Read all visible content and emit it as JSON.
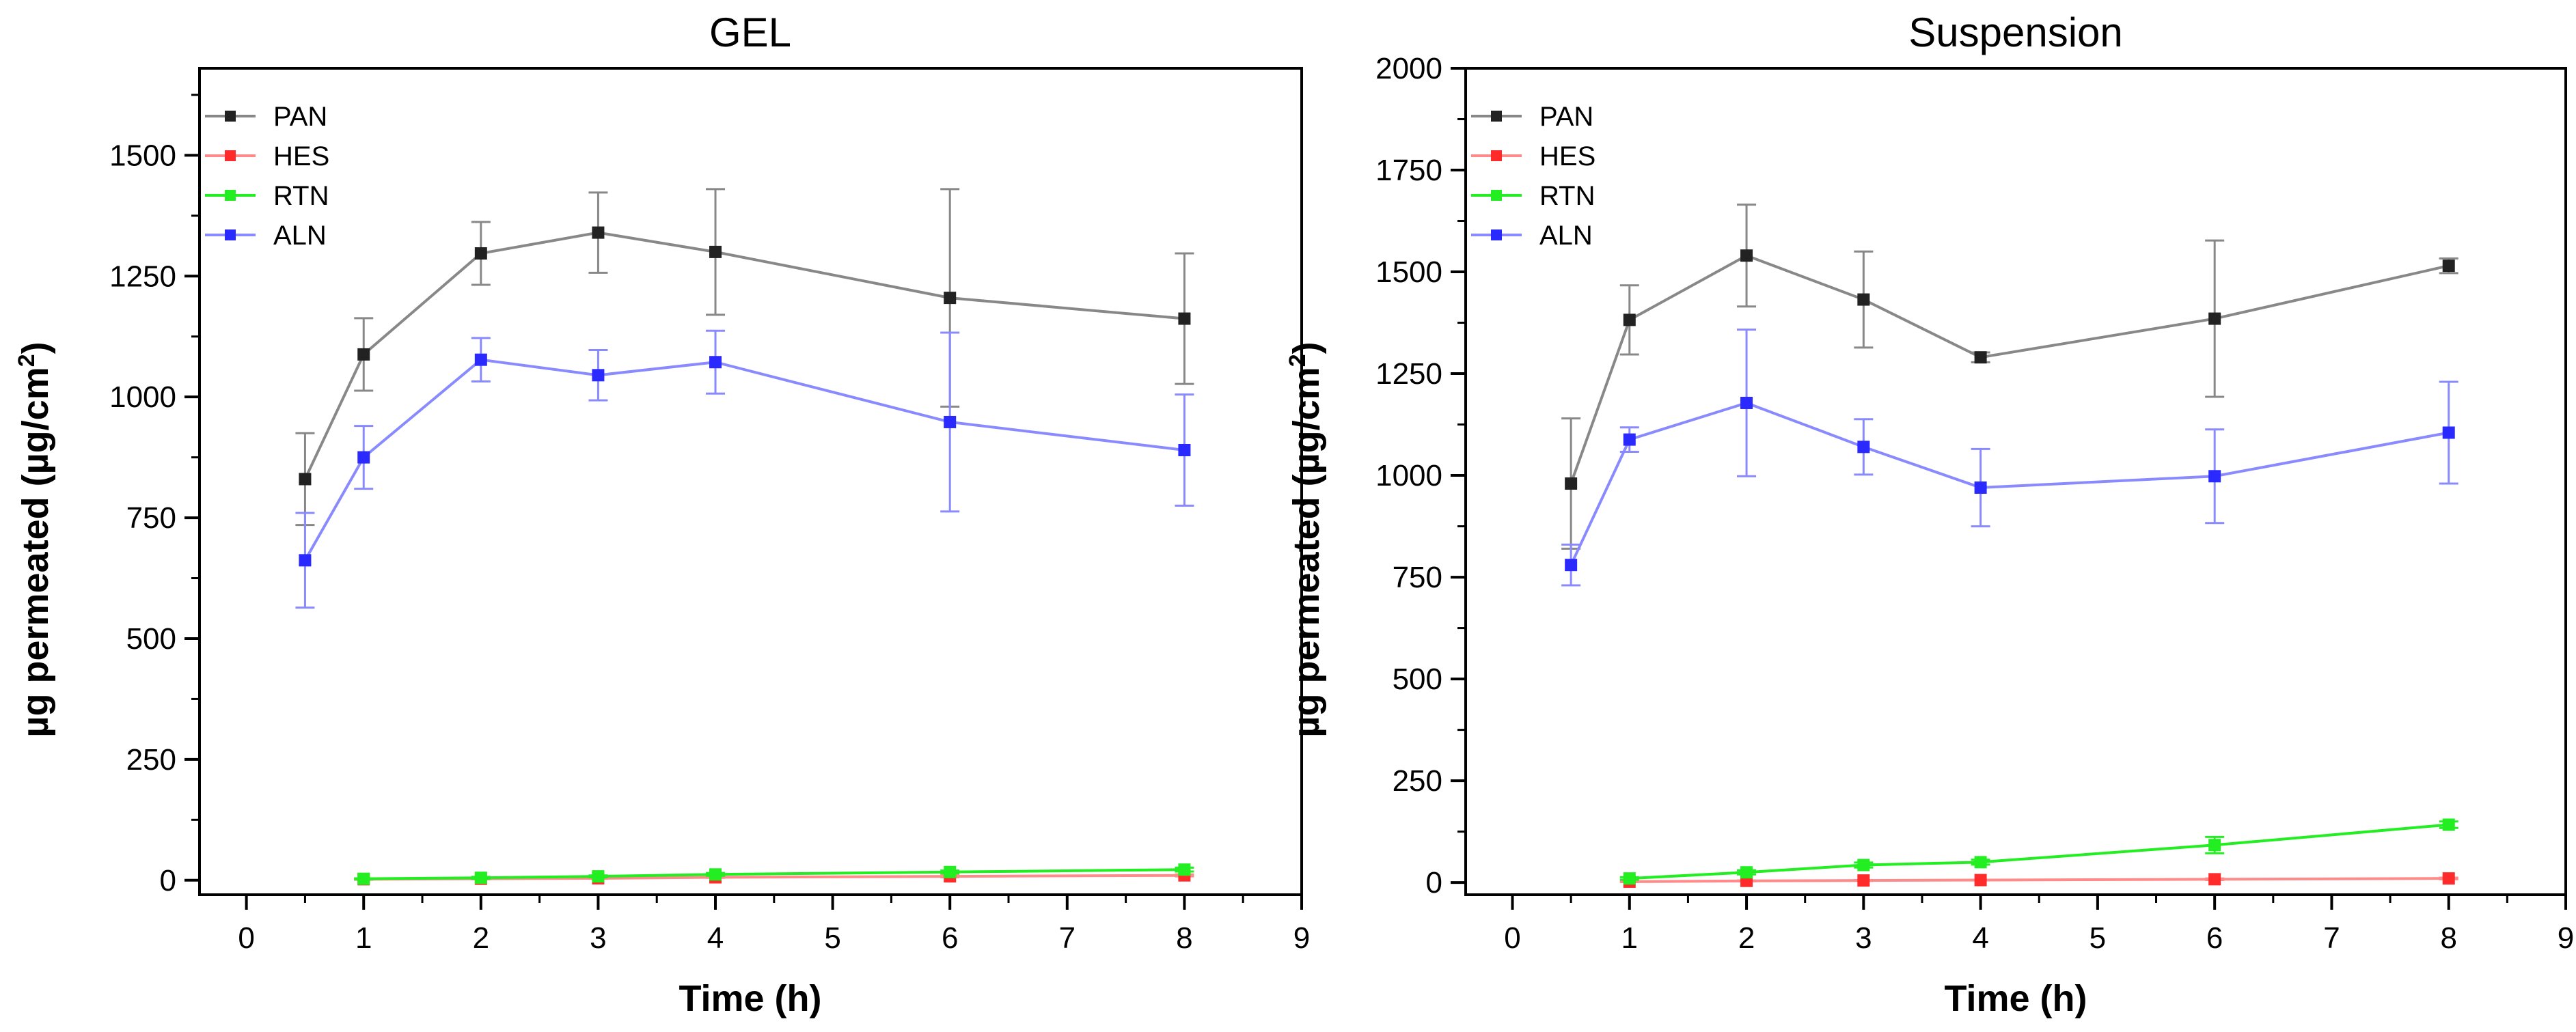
{
  "chart_data": [
    {
      "type": "line",
      "title": "GEL",
      "xlabel": "Time (h)",
      "ylabel": "µg permeated (µg/cm²)",
      "ylabel_main": "µg permeated (µg/cm",
      "ylabel_sup": "2",
      "ylabel_tail": ")",
      "xlim": [
        -0.4,
        9
      ],
      "ylim": [
        -30,
        1680
      ],
      "xticks": [
        0,
        1,
        2,
        3,
        4,
        5,
        6,
        7,
        8,
        9
      ],
      "yticks": [
        0,
        250,
        500,
        750,
        1000,
        1250,
        1500
      ],
      "xtick_labels": [
        "0",
        "1",
        "2",
        "3",
        "4",
        "5",
        "6",
        "7",
        "8",
        "9"
      ],
      "ytick_labels": [
        "0",
        "250",
        "500",
        "750",
        "1000",
        "1250",
        "1500"
      ],
      "grid": false,
      "legend_position": "top-left",
      "series": [
        {
          "name": "PAN",
          "color": "#222222",
          "line_color": "#888888",
          "x": [
            0.5,
            1,
            2,
            3,
            4,
            6,
            8
          ],
          "y": [
            830,
            1088,
            1297,
            1340,
            1300,
            1205,
            1162
          ],
          "err": [
            95,
            75,
            65,
            83,
            130,
            225,
            135
          ]
        },
        {
          "name": "HES",
          "color": "#ff2a2a",
          "line_color": "#ff8a8a",
          "x": [
            1,
            2,
            3,
            4,
            6,
            8
          ],
          "y": [
            2,
            3,
            4,
            6,
            8,
            10
          ],
          "err": [
            1,
            1,
            1,
            1,
            2,
            2
          ]
        },
        {
          "name": "RTN",
          "color": "#22ee22",
          "line_color": "#22ee22",
          "x": [
            1,
            2,
            3,
            4,
            6,
            8
          ],
          "y": [
            3,
            5,
            8,
            12,
            17,
            22
          ],
          "err": [
            1,
            2,
            2,
            3,
            3,
            4
          ]
        },
        {
          "name": "ALN",
          "color": "#2a2aff",
          "line_color": "#8a8aff",
          "x": [
            0.5,
            1,
            2,
            3,
            4,
            6,
            8
          ],
          "y": [
            662,
            875,
            1077,
            1045,
            1072,
            948,
            890
          ],
          "err": [
            98,
            65,
            45,
            52,
            65,
            185,
            115
          ]
        }
      ]
    },
    {
      "type": "line",
      "title": "Suspension",
      "xlabel": "Time (h)",
      "ylabel": "µg permeated (µg/cm²)",
      "ylabel_main": "µg permeated (µg/cm",
      "ylabel_sup": "2",
      "ylabel_tail": ")",
      "xlim": [
        -0.4,
        9
      ],
      "ylim": [
        -30,
        2000
      ],
      "xticks": [
        0,
        1,
        2,
        3,
        4,
        5,
        6,
        7,
        8,
        9
      ],
      "yticks": [
        0,
        250,
        500,
        750,
        1000,
        1250,
        1500,
        1750,
        2000
      ],
      "xtick_labels": [
        "0",
        "1",
        "2",
        "3",
        "4",
        "5",
        "6",
        "7",
        "8",
        "9"
      ],
      "ytick_labels": [
        "0",
        "250",
        "500",
        "750",
        "1000",
        "1250",
        "1500",
        "1750",
        "2000"
      ],
      "grid": false,
      "legend_position": "top-left",
      "series": [
        {
          "name": "PAN",
          "color": "#222222",
          "line_color": "#888888",
          "x": [
            0.5,
            1,
            2,
            3,
            4,
            6,
            8
          ],
          "y": [
            980,
            1382,
            1540,
            1432,
            1290,
            1385,
            1515
          ],
          "err": [
            160,
            85,
            125,
            118,
            12,
            192,
            18
          ]
        },
        {
          "name": "HES",
          "color": "#ff2a2a",
          "line_color": "#ff8a8a",
          "x": [
            1,
            2,
            3,
            4,
            6,
            8
          ],
          "y": [
            2,
            4,
            5,
            6,
            8,
            10
          ],
          "err": [
            1,
            1,
            1,
            1,
            2,
            2
          ]
        },
        {
          "name": "RTN",
          "color": "#22ee22",
          "line_color": "#22ee22",
          "x": [
            1,
            2,
            3,
            4,
            6,
            8
          ],
          "y": [
            10,
            25,
            43,
            50,
            92,
            142
          ],
          "err": [
            3,
            5,
            6,
            6,
            20,
            8
          ]
        },
        {
          "name": "ALN",
          "color": "#2a2aff",
          "line_color": "#8a8aff",
          "x": [
            0.5,
            1,
            2,
            3,
            4,
            6,
            8
          ],
          "y": [
            780,
            1088,
            1178,
            1070,
            970,
            998,
            1105
          ],
          "err": [
            50,
            30,
            180,
            68,
            95,
            115,
            125
          ]
        }
      ]
    }
  ]
}
